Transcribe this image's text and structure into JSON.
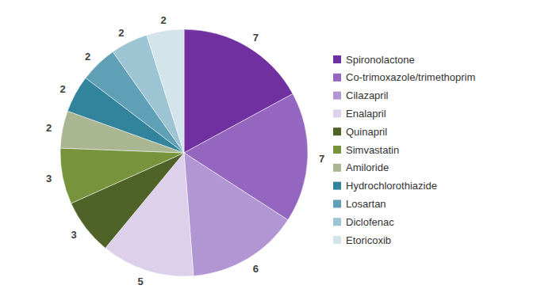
{
  "chart_data": {
    "type": "pie",
    "categories": [
      "Spironolactone",
      "Co-trimoxazole/trimethoprim",
      "Cilazapril",
      "Enalapril",
      "Quinapril",
      "Simvastatin",
      "Amiloride",
      "Hydrochlorothiazide",
      "Losartan",
      "Diclofenac",
      "Etoricoxib"
    ],
    "values": [
      7,
      7,
      6,
      5,
      3,
      3,
      2,
      2,
      2,
      2,
      2
    ],
    "colors": [
      "#7030a0",
      "#9566c0",
      "#b296d3",
      "#dcd0ea",
      "#4f6228",
      "#77933c",
      "#aab592",
      "#31849b",
      "#60a0b6",
      "#9cc4d2",
      "#d3e4eb"
    ],
    "data_labels": true,
    "legend": "right"
  }
}
